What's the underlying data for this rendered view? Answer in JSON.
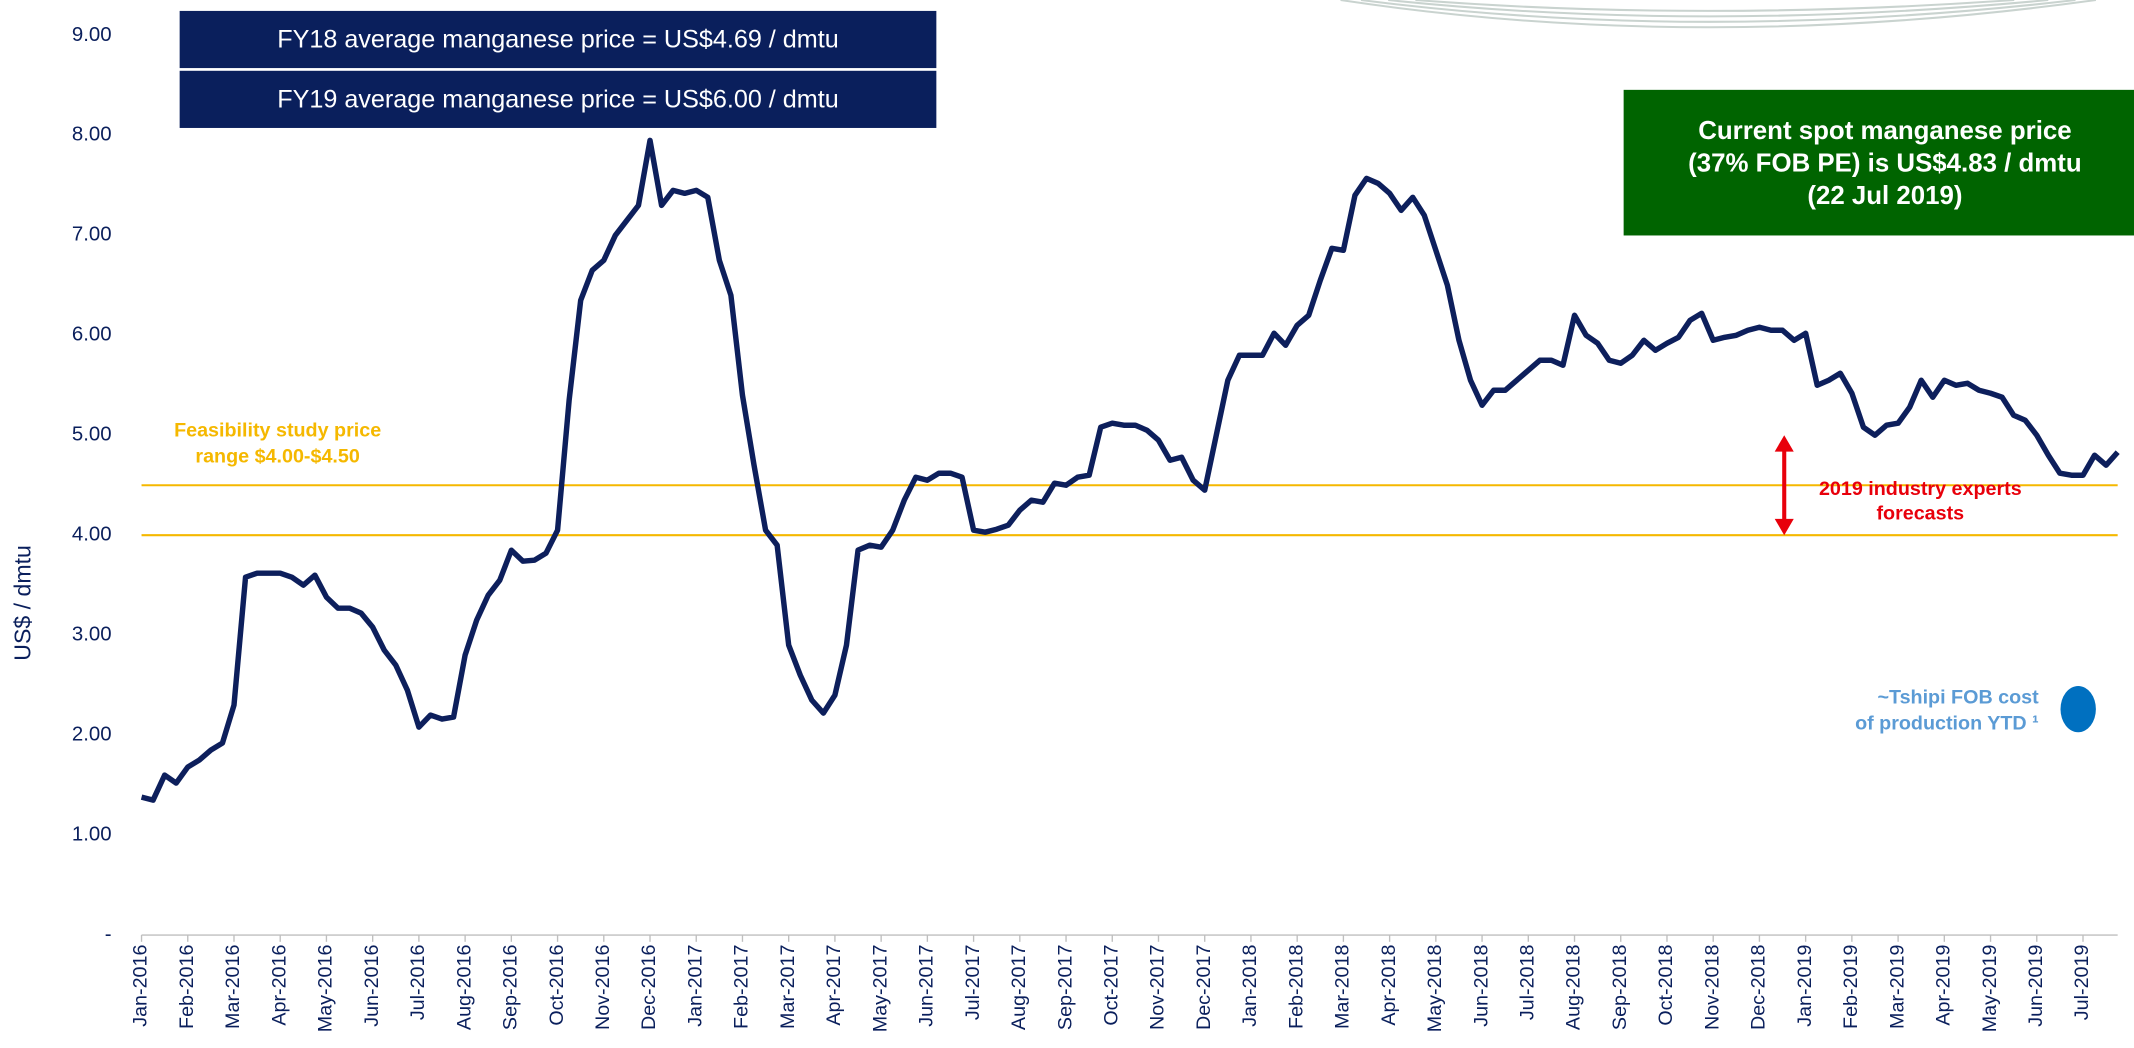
{
  "chart_data": {
    "type": "line",
    "y_label": "US$ / dmtu",
    "ylim": [
      0,
      9
    ],
    "yticks": [
      {
        "value": 0,
        "label": "-"
      },
      {
        "value": 1,
        "label": "1.00"
      },
      {
        "value": 2,
        "label": "2.00"
      },
      {
        "value": 3,
        "label": "3.00"
      },
      {
        "value": 4,
        "label": "4.00"
      },
      {
        "value": 5,
        "label": "5.00"
      },
      {
        "value": 6,
        "label": "6.00"
      },
      {
        "value": 7,
        "label": "7.00"
      },
      {
        "value": 8,
        "label": "8.00"
      },
      {
        "value": 9,
        "label": "9.00"
      }
    ],
    "categories": [
      "Jan-2016",
      null,
      null,
      null,
      "Feb-2016",
      null,
      null,
      null,
      "Mar-2016",
      null,
      null,
      null,
      "Apr-2016",
      null,
      null,
      null,
      "May-2016",
      null,
      null,
      null,
      "Jun-2016",
      null,
      null,
      null,
      "Jul-2016",
      null,
      null,
      null,
      "Aug-2016",
      null,
      null,
      null,
      "Sep-2016",
      null,
      null,
      null,
      "Oct-2016",
      null,
      null,
      null,
      "Nov-2016",
      null,
      null,
      null,
      "Dec-2016",
      null,
      null,
      null,
      "Jan-2017",
      null,
      null,
      null,
      "Feb-2017",
      null,
      null,
      null,
      "Mar-2017",
      null,
      null,
      null,
      "Apr-2017",
      null,
      null,
      null,
      "May-2017",
      null,
      null,
      null,
      "Jun-2017",
      null,
      null,
      null,
      "Jul-2017",
      null,
      null,
      null,
      "Aug-2017",
      null,
      null,
      null,
      "Sep-2017",
      null,
      null,
      null,
      "Oct-2017",
      null,
      null,
      null,
      "Nov-2017",
      null,
      null,
      null,
      "Dec-2017",
      null,
      null,
      null,
      "Jan-2018",
      null,
      null,
      null,
      "Feb-2018",
      null,
      null,
      null,
      "Mar-2018",
      null,
      null,
      null,
      "Apr-2018",
      null,
      null,
      null,
      "May-2018",
      null,
      null,
      null,
      "Jun-2018",
      null,
      null,
      null,
      "Jul-2018",
      null,
      null,
      null,
      "Aug-2018",
      null,
      null,
      null,
      "Sep-2018",
      null,
      null,
      null,
      "Oct-2018",
      null,
      null,
      null,
      "Nov-2018",
      null,
      null,
      null,
      "Dec-2018",
      null,
      null,
      null,
      "Jan-2019",
      null,
      null,
      null,
      "Feb-2019",
      null,
      null,
      null,
      "Mar-2019",
      null,
      null,
      null,
      "Apr-2019",
      null,
      null,
      null,
      "May-2019",
      null,
      null,
      null,
      "Jun-2019",
      null,
      null,
      null,
      "Jul-2019",
      null,
      null,
      null
    ],
    "series": [
      {
        "name": "Manganese price",
        "color": "#0d1f5c",
        "values": [
          1.38,
          1.35,
          1.6,
          1.52,
          1.68,
          1.75,
          1.85,
          1.92,
          2.3,
          3.58,
          3.62,
          3.62,
          3.62,
          3.58,
          3.5,
          3.6,
          3.38,
          3.27,
          3.27,
          3.22,
          3.08,
          2.85,
          2.7,
          2.45,
          2.08,
          2.2,
          2.16,
          2.18,
          2.8,
          3.15,
          3.4,
          3.55,
          3.85,
          3.74,
          3.75,
          3.82,
          4.05,
          5.35,
          6.35,
          6.65,
          6.75,
          7.0,
          7.15,
          7.3,
          7.95,
          7.3,
          7.45,
          7.42,
          7.45,
          7.38,
          6.75,
          6.4,
          5.4,
          4.7,
          4.05,
          3.9,
          2.9,
          2.6,
          2.35,
          2.22,
          2.4,
          2.9,
          3.85,
          3.9,
          3.88,
          4.05,
          4.35,
          4.58,
          4.55,
          4.62,
          4.62,
          4.58,
          4.05,
          4.03,
          4.06,
          4.1,
          4.25,
          4.35,
          4.33,
          4.52,
          4.5,
          4.58,
          4.6,
          5.08,
          5.12,
          5.1,
          5.1,
          5.05,
          4.95,
          4.75,
          4.78,
          4.55,
          4.45,
          5.0,
          5.55,
          5.8,
          5.8,
          5.8,
          6.02,
          5.9,
          6.1,
          6.2,
          6.55,
          6.87,
          6.85,
          7.4,
          7.57,
          7.52,
          7.42,
          7.25,
          7.38,
          7.2,
          6.85,
          6.5,
          5.95,
          5.55,
          5.3,
          5.45,
          5.45,
          5.55,
          5.65,
          5.75,
          5.75,
          5.7,
          6.2,
          6.0,
          5.92,
          5.75,
          5.72,
          5.8,
          5.95,
          5.85,
          5.92,
          5.98,
          6.15,
          6.22,
          5.95,
          5.98,
          6.0,
          6.05,
          6.08,
          6.05,
          6.05,
          5.95,
          6.02,
          5.5,
          5.55,
          5.62,
          5.42,
          5.08,
          5.0,
          5.1,
          5.12,
          5.28,
          5.55,
          5.38,
          5.55,
          5.5,
          5.52,
          5.45,
          5.42,
          5.38,
          5.2,
          5.15,
          5.0,
          4.8,
          4.62,
          4.6,
          4.6,
          4.8,
          4.7,
          4.83
        ]
      }
    ],
    "reference_lines": {
      "color": "#f5b800",
      "values": [
        4.0,
        4.5
      ],
      "label": [
        "Feasibility study price",
        "range $4.00-$4.50"
      ]
    },
    "forecast": {
      "color": "#e8000b",
      "range": [
        4.0,
        5.0
      ],
      "label": [
        "2019 industry experts",
        "forecasts"
      ]
    },
    "cost_marker": {
      "color": "#0070c0",
      "value": 2.26,
      "label": [
        "~Tshipi FOB cost",
        "of production YTD ¹"
      ]
    },
    "average_boxes": {
      "color": "#0a1f5c",
      "texts": [
        "FY18 average manganese price = US$4.69 / dmtu",
        "FY19 average manganese price = US$6.00 / dmtu"
      ]
    },
    "spot_box": {
      "color": "#006400",
      "lines": [
        "Current spot manganese price",
        "(37% FOB PE) is US$4.83 / dmtu",
        "(22 Jul 2019)"
      ]
    }
  }
}
